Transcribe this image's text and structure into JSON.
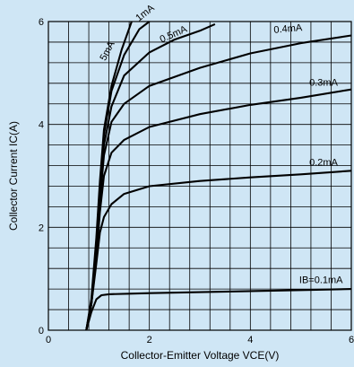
{
  "chart_data": {
    "type": "line",
    "xlabel": "Collector-Emitter Voltage VCE(V)",
    "ylabel": "Collector Current IC(A)",
    "xlim": [
      0,
      6
    ],
    "ylim": [
      0,
      6
    ],
    "xticks": [
      "0",
      "2",
      "4",
      "6"
    ],
    "yticks": [
      "0",
      "2",
      "4",
      "6"
    ],
    "grid": true,
    "series": [
      {
        "name": "IB=0.1mA",
        "x": [
          0.75,
          0.85,
          0.95,
          1.05,
          1.2,
          1.6,
          2,
          3,
          4,
          5,
          6
        ],
        "y": [
          0,
          0.35,
          0.6,
          0.68,
          0.7,
          0.71,
          0.72,
          0.74,
          0.76,
          0.78,
          0.8
        ]
      },
      {
        "name": "0.2mA",
        "x": [
          0.75,
          0.85,
          0.95,
          1.02,
          1.1,
          1.25,
          1.5,
          2,
          3,
          4,
          5,
          6
        ],
        "y": [
          0,
          0.5,
          1.3,
          1.9,
          2.2,
          2.45,
          2.65,
          2.8,
          2.9,
          2.97,
          3.03,
          3.1
        ]
      },
      {
        "name": "0.3mA",
        "x": [
          0.75,
          0.85,
          0.95,
          1.02,
          1.1,
          1.25,
          1.5,
          2,
          3,
          4,
          5,
          6
        ],
        "y": [
          0,
          0.5,
          1.4,
          2.3,
          3.0,
          3.45,
          3.7,
          3.95,
          4.2,
          4.38,
          4.52,
          4.68
        ]
      },
      {
        "name": "0.4mA",
        "x": [
          0.75,
          0.85,
          0.95,
          1.02,
          1.1,
          1.25,
          1.5,
          2,
          3,
          4,
          5,
          6
        ],
        "y": [
          0,
          0.5,
          1.5,
          2.5,
          3.4,
          4.05,
          4.4,
          4.75,
          5.1,
          5.38,
          5.58,
          5.73
        ]
      },
      {
        "name": "0.5mA",
        "x": [
          0.75,
          0.85,
          0.95,
          1.02,
          1.1,
          1.25,
          1.5,
          2,
          2.5,
          3,
          3.3
        ],
        "y": [
          0,
          0.5,
          1.6,
          2.6,
          3.6,
          4.35,
          4.95,
          5.4,
          5.65,
          5.82,
          5.95
        ]
      },
      {
        "name": "1mA",
        "x": [
          0.75,
          0.85,
          0.95,
          1.02,
          1.1,
          1.25,
          1.5,
          1.8,
          2.0
        ],
        "y": [
          0,
          0.55,
          1.7,
          2.8,
          3.8,
          4.65,
          5.35,
          5.85,
          6.0
        ]
      },
      {
        "name": "5mA",
        "x": [
          0.75,
          0.85,
          0.95,
          1.02,
          1.1,
          1.25,
          1.45,
          1.65
        ],
        "y": [
          0,
          0.6,
          1.8,
          2.9,
          3.9,
          4.75,
          5.45,
          6.0
        ]
      }
    ]
  }
}
